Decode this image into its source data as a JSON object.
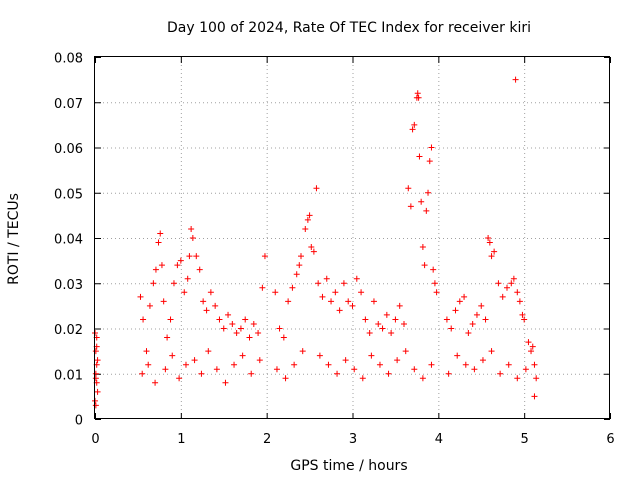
{
  "chart_data": {
    "type": "scatter",
    "title": "Day 100 of 2024, Rate Of TEC Index for receiver kiri",
    "xlabel": "GPS time / hours",
    "ylabel": "ROTI / TECUs",
    "xlim": [
      0,
      6
    ],
    "ylim": [
      0,
      0.08
    ],
    "grid": true,
    "marker": "plus",
    "color": "#ff0000",
    "x_ticks": [
      "0",
      "1",
      "2",
      "3",
      "4",
      "5",
      "6"
    ],
    "y_ticks": [
      "0",
      "0.01",
      "0.02",
      "0.03",
      "0.04",
      "0.05",
      "0.06",
      "0.07",
      "0.08"
    ],
    "series": [
      {
        "name": "ROTI",
        "x": [
          0.0,
          0.01,
          0.02,
          0.01,
          0.02,
          0.03,
          0.0,
          0.01,
          0.02,
          0.03,
          0.01,
          0.02,
          0.53,
          0.56,
          0.6,
          0.64,
          0.68,
          0.71,
          0.74,
          0.76,
          0.78,
          0.8,
          0.84,
          0.88,
          0.92,
          0.96,
          1.0,
          1.04,
          1.08,
          1.1,
          1.12,
          1.14,
          1.18,
          1.22,
          1.26,
          1.3,
          1.35,
          1.4,
          1.45,
          1.5,
          1.55,
          1.6,
          1.65,
          1.7,
          1.75,
          1.8,
          1.85,
          1.9,
          1.95,
          1.98,
          2.1,
          2.15,
          2.2,
          2.25,
          2.3,
          2.35,
          2.38,
          2.4,
          2.45,
          2.48,
          2.5,
          2.52,
          2.55,
          2.58,
          2.6,
          2.65,
          2.7,
          2.75,
          2.8,
          2.85,
          2.9,
          2.95,
          3.0,
          3.05,
          3.1,
          3.15,
          3.2,
          3.25,
          3.3,
          3.35,
          3.4,
          3.45,
          3.5,
          3.55,
          3.6,
          3.65,
          3.68,
          3.7,
          3.72,
          3.75,
          3.76,
          3.77,
          3.78,
          3.8,
          3.82,
          3.84,
          3.86,
          3.88,
          3.9,
          3.92,
          3.94,
          3.96,
          3.98,
          4.1,
          4.15,
          4.2,
          4.25,
          4.3,
          4.35,
          4.4,
          4.45,
          4.5,
          4.55,
          4.58,
          4.6,
          4.62,
          4.65,
          4.7,
          4.75,
          4.8,
          4.85,
          4.88,
          4.9,
          4.92,
          4.95,
          4.98,
          5.0,
          5.05,
          5.08,
          5.1,
          5.12,
          5.14,
          0.55,
          0.62,
          0.7,
          0.82,
          0.9,
          0.98,
          1.06,
          1.16,
          1.24,
          1.32,
          1.42,
          1.52,
          1.62,
          1.72,
          1.82,
          1.92,
          2.12,
          2.22,
          2.32,
          2.42,
          2.62,
          2.72,
          2.82,
          2.92,
          3.02,
          3.12,
          3.22,
          3.32,
          3.42,
          3.52,
          3.62,
          3.72,
          3.82,
          3.92,
          4.12,
          4.22,
          4.32,
          4.42,
          4.52,
          4.62,
          4.72,
          4.82,
          4.92,
          5.02,
          5.12
        ],
        "y": [
          0.019,
          0.015,
          0.012,
          0.01,
          0.008,
          0.006,
          0.004,
          0.009,
          0.018,
          0.013,
          0.003,
          0.016,
          0.027,
          0.022,
          0.015,
          0.025,
          0.03,
          0.033,
          0.039,
          0.041,
          0.034,
          0.026,
          0.018,
          0.022,
          0.03,
          0.034,
          0.035,
          0.028,
          0.031,
          0.036,
          0.042,
          0.04,
          0.036,
          0.033,
          0.026,
          0.024,
          0.028,
          0.025,
          0.022,
          0.02,
          0.023,
          0.021,
          0.019,
          0.02,
          0.022,
          0.018,
          0.021,
          0.019,
          0.029,
          0.036,
          0.028,
          0.02,
          0.018,
          0.026,
          0.029,
          0.032,
          0.034,
          0.036,
          0.042,
          0.044,
          0.045,
          0.038,
          0.037,
          0.051,
          0.03,
          0.027,
          0.031,
          0.026,
          0.028,
          0.024,
          0.03,
          0.026,
          0.025,
          0.031,
          0.028,
          0.022,
          0.019,
          0.026,
          0.021,
          0.02,
          0.023,
          0.019,
          0.022,
          0.025,
          0.021,
          0.051,
          0.047,
          0.064,
          0.065,
          0.071,
          0.072,
          0.071,
          0.058,
          0.048,
          0.038,
          0.034,
          0.046,
          0.05,
          0.057,
          0.06,
          0.033,
          0.03,
          0.028,
          0.022,
          0.02,
          0.024,
          0.026,
          0.027,
          0.019,
          0.021,
          0.023,
          0.025,
          0.022,
          0.04,
          0.039,
          0.036,
          0.037,
          0.03,
          0.027,
          0.029,
          0.03,
          0.031,
          0.075,
          0.028,
          0.026,
          0.023,
          0.022,
          0.017,
          0.015,
          0.016,
          0.012,
          0.009,
          0.01,
          0.012,
          0.008,
          0.011,
          0.014,
          0.009,
          0.012,
          0.013,
          0.01,
          0.015,
          0.011,
          0.008,
          0.012,
          0.014,
          0.01,
          0.013,
          0.011,
          0.009,
          0.012,
          0.015,
          0.014,
          0.012,
          0.01,
          0.013,
          0.011,
          0.009,
          0.014,
          0.012,
          0.01,
          0.013,
          0.015,
          0.011,
          0.009,
          0.012,
          0.01,
          0.014,
          0.012,
          0.011,
          0.013,
          0.015,
          0.01,
          0.012,
          0.009,
          0.011,
          0.005
        ]
      }
    ]
  }
}
